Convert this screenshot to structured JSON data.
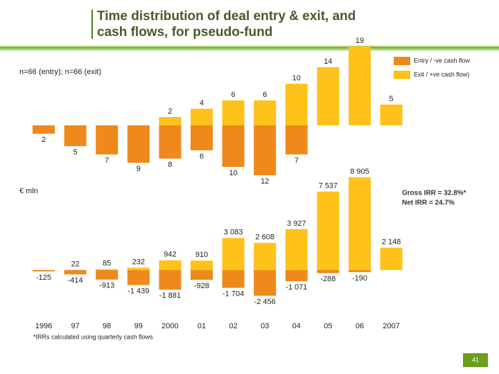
{
  "header": {
    "title": [
      "Time distribution of deal entry & exit, and",
      "cash flows, for pseudo-fund"
    ],
    "subtitle": "n=66 (entry); n=66 (exit)",
    "page_number": "41"
  },
  "chart_data": [
    {
      "type": "bar",
      "legend": "top-right",
      "series": [
        {
          "name": "Entry / -ve cash flow",
          "color": "#f0891c",
          "direction": "down",
          "values": [
            2,
            5,
            7,
            9,
            8,
            6,
            10,
            12,
            7,
            null,
            null,
            null
          ]
        },
        {
          "name": "Exit / +ve cash flow)",
          "color": "#ffc21a",
          "values": [
            null,
            null,
            null,
            null,
            2,
            4,
            6,
            6,
            10,
            14,
            19,
            5
          ]
        }
      ]
    },
    {
      "type": "bar",
      "ylabel": "€ mln",
      "categories": [
        "1996",
        "97",
        "98",
        "99",
        "2000",
        "01",
        "02",
        "03",
        "04",
        "05",
        "06",
        "2007"
      ],
      "annotations": [
        "Gross IRR = 32.8%*",
        "Net IRR = 24.7%"
      ],
      "footnote": "*IRRs calculated using quarterly cash flows",
      "series": [
        {
          "color": "#f0891c",
          "values": [
            -125,
            -414,
            -913,
            -1439,
            -1881,
            -928,
            -1704,
            -2456,
            -1071,
            -288,
            -190,
            null
          ],
          "value_labels": [
            "-125",
            "-414",
            "-913",
            "-1 439",
            "-1 881",
            "-928",
            "-1 704",
            "-2 456",
            "-1 071",
            "-288",
            "-190",
            null
          ]
        },
        {
          "color": "#ffc21a",
          "values": [
            null,
            22,
            85,
            232,
            942,
            910,
            3083,
            2608,
            3927,
            7537,
            8905,
            2148
          ],
          "value_labels": [
            null,
            "22",
            "85",
            "232",
            "942",
            "910",
            "3 083",
            "2 608",
            "3 927",
            "7 537",
            "8 905",
            "2 148"
          ]
        }
      ]
    }
  ]
}
